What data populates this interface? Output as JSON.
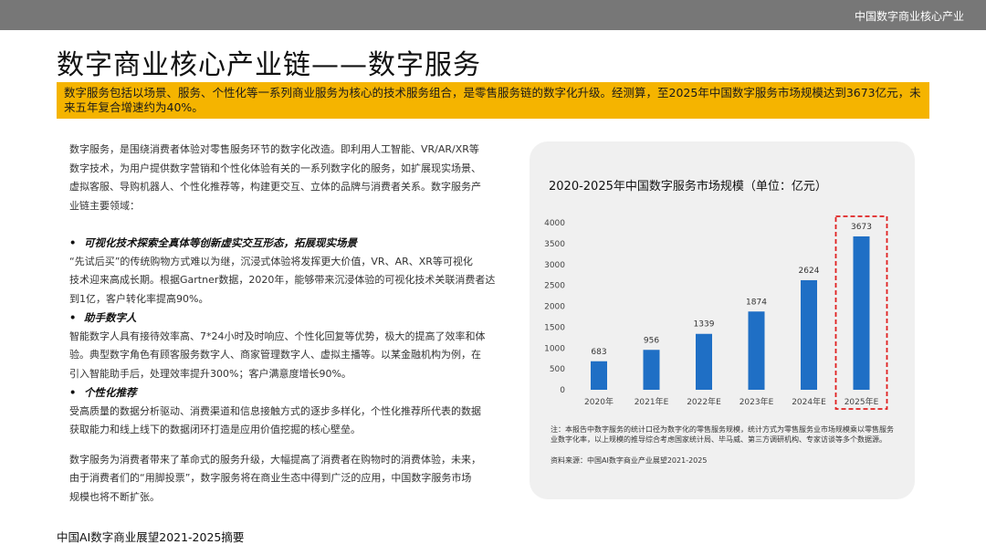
{
  "header": {
    "report_title": "中国数字商业核心产业"
  },
  "page": {
    "title": "数字商业核心产业链——数字服务",
    "summary": "数字服务包括以场景、服务、个性化等一系列商业服务为核心的技术服务组合，是零售服务链的数字化升级。经测算，至2025年中国数字服务市场规模达到3673亿元，未来五年复合增速约为40%。",
    "footer": "中国AI数字商业展望2021-2025摘要"
  },
  "left": {
    "intro": [
      "数字服务，是围绕消费者体验对零售服务环节的数字化改造。即利用人工智能、VR/AR/XR等",
      "数字技术，为用户提供数字营销和个性化体验有关的一系列数字化的服务，如扩展现实场景、",
      "虚拟客服、导购机器人、个性化推荐等，构建更交互、立体的品牌与消费者关系。数字服务产",
      "业链主要领域："
    ],
    "sections": [
      {
        "heading": "可视化技术探索全真体等创新虚实交互形态，拓展现实场景",
        "lines": [
          "“先试后买”的传统购物方式难以为继，沉浸式体验将发挥更大价值，VR、AR、XR等可视化",
          "技术迎来高成长期。根据Gartner数据，2020年，能够带来沉浸体验的可视化技术关联消费者达",
          "到1亿，客户转化率提高90%。"
        ]
      },
      {
        "heading": "助手数字人",
        "lines": [
          "智能数字人具有接待效率高、7*24小时及时响应、个性化回复等优势，极大的提高了效率和体",
          "验。典型数字角色有顾客服务数字人、商家管理数字人、虚拟主播等。以某金融机构为例，在",
          "引入智能助手后，处理效率提升300%；客户满意度增长90%。"
        ]
      },
      {
        "heading": "个性化推荐",
        "lines": [
          "受高质量的数据分析驱动、消费渠道和信息接触方式的逐步多样化，个性化推荐所代表的数据",
          "获取能力和线上线下的数据闭环打造是应用价值挖掘的核心壁垒。"
        ]
      }
    ],
    "conclusion": [
      "数字服务为消费者带来了革命式的服务升级，大幅提高了消费者在购物时的消费体验，未来，",
      "由于消费者们的“用脚投票”，数字服务将在商业生态中得到广泛的应用，中国数字服务市场",
      "规模也将不断扩张。"
    ]
  },
  "chart_panel": {
    "note": "注：本报告中数字服务的统计口径为数字化的零售服务规模，统计方式为零售服务业市场规模乘以零售服务业数字化率，以上规模的推导综合考虑国家统计局、毕马威、第三方调研机构、专家访谈等多个数据源。",
    "source": "资料来源：中国AI数字商业产业展望2021-2025"
  },
  "colors": {
    "bar": "#1f6fc5",
    "highlight_border": "#e02020",
    "summary_bg": "#f5b400",
    "topbar_bg": "#777777"
  },
  "chart_data": {
    "type": "bar",
    "title": "2020-2025年中国数字服务市场规模（单位：亿元）",
    "categories": [
      "2020年",
      "2021年E",
      "2022年E",
      "2023年E",
      "2024年E",
      "2025年E"
    ],
    "values": [
      683,
      956,
      1339,
      1874,
      2624,
      3673
    ],
    "ylim": [
      0,
      4000
    ],
    "yticks": [
      "0",
      "500",
      "1000",
      "1500",
      "2000",
      "2500",
      "3000",
      "3500",
      "4000"
    ],
    "grid": false,
    "highlighted_category": "2025年E"
  }
}
